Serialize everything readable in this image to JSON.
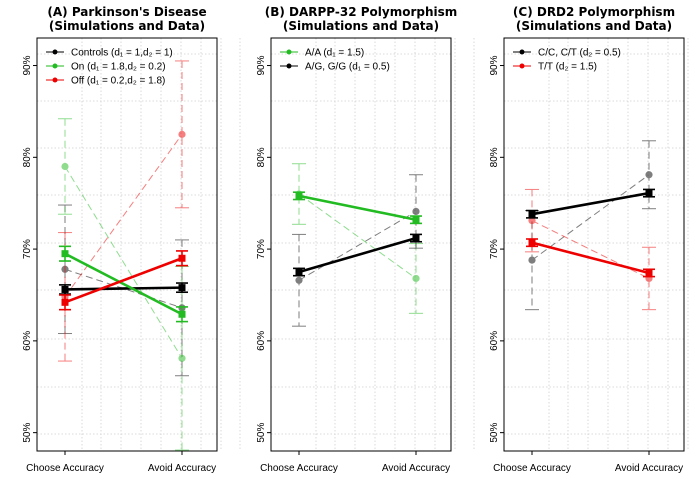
{
  "chart_data": [
    {
      "type": "line",
      "title": "(A) Parkinson's Disease",
      "subtitle": "(Simulations and Data)",
      "categories": [
        "Choose Accuracy",
        "Avoid Accuracy"
      ],
      "ylim": [
        48,
        93
      ],
      "yticks": [
        "50%",
        "60%",
        "70%",
        "80%",
        "90%"
      ],
      "legend_position": "top-left",
      "grid": true,
      "legend": [
        {
          "label": "Controls (d₁ = 1,d₂ = 1)",
          "color": "#000000"
        },
        {
          "label": "On (d₁ = 1.8,d₂ = 0.2)",
          "color": "#22bb22"
        },
        {
          "label": "Off (d₁ = 0.2,d₂ = 1.8)",
          "color": "#ee0000"
        }
      ],
      "series": [
        {
          "kind": "data",
          "color": "#000000",
          "values": [
            67.8,
            63.6
          ],
          "err": [
            7.0,
            7.4
          ]
        },
        {
          "kind": "data",
          "color": "#22bb22",
          "values": [
            79.0,
            58.1
          ],
          "err": [
            5.2,
            10.0
          ]
        },
        {
          "kind": "data",
          "color": "#ee0000",
          "values": [
            64.8,
            82.5
          ],
          "err": [
            7.0,
            8.0
          ]
        },
        {
          "kind": "sim",
          "color": "#000000",
          "values": [
            65.6,
            65.8
          ],
          "err": [
            0.5,
            0.5
          ]
        },
        {
          "kind": "sim",
          "color": "#22bb22",
          "values": [
            69.5,
            62.9
          ],
          "err": [
            0.8,
            0.8
          ]
        },
        {
          "kind": "sim",
          "color": "#ee0000",
          "values": [
            64.2,
            69.0
          ],
          "err": [
            0.8,
            0.8
          ]
        }
      ]
    },
    {
      "type": "line",
      "title": "(B) DARPP-32 Polymorphism",
      "subtitle": "(Simulations and Data)",
      "categories": [
        "Choose Accuracy",
        "Avoid Accuracy"
      ],
      "ylim": [
        48,
        93
      ],
      "yticks": [
        "50%",
        "60%",
        "70%",
        "80%",
        "90%"
      ],
      "legend_position": "top-left",
      "grid": true,
      "legend": [
        {
          "label": "A/A (d₁ = 1.5)",
          "color": "#22bb22"
        },
        {
          "label": "A/G, G/G (d₁ = 0.5)",
          "color": "#000000"
        }
      ],
      "series": [
        {
          "kind": "data",
          "color": "#22bb22",
          "values": [
            76.0,
            66.8
          ],
          "err": [
            3.3,
            3.8
          ]
        },
        {
          "kind": "data",
          "color": "#000000",
          "values": [
            66.6,
            74.1
          ],
          "err": [
            5.0,
            4.0
          ]
        },
        {
          "kind": "sim",
          "color": "#22bb22",
          "values": [
            75.8,
            73.2
          ],
          "err": [
            0.4,
            0.4
          ]
        },
        {
          "kind": "sim",
          "color": "#000000",
          "values": [
            67.5,
            71.2
          ],
          "err": [
            0.4,
            0.4
          ]
        }
      ]
    },
    {
      "type": "line",
      "title": "(C) DRD2 Polymorphism",
      "subtitle": "(Simulations and Data)",
      "categories": [
        "Choose Accuracy",
        "Avoid Accuracy"
      ],
      "ylim": [
        48,
        93
      ],
      "yticks": [
        "50%",
        "60%",
        "70%",
        "80%",
        "90%"
      ],
      "legend_position": "top-left",
      "grid": true,
      "legend": [
        {
          "label": "C/C, C/T (d₂ = 0.5)",
          "color": "#000000"
        },
        {
          "label": "T/T (d₂ = 1.5)",
          "color": "#ee0000"
        }
      ],
      "series": [
        {
          "kind": "data",
          "color": "#000000",
          "values": [
            68.8,
            78.1
          ],
          "err": [
            5.4,
            3.7
          ]
        },
        {
          "kind": "data",
          "color": "#ee0000",
          "values": [
            73.1,
            66.8
          ],
          "err": [
            3.4,
            3.4
          ]
        },
        {
          "kind": "sim",
          "color": "#000000",
          "values": [
            73.8,
            76.1
          ],
          "err": [
            0.4,
            0.4
          ]
        },
        {
          "kind": "sim",
          "color": "#ee0000",
          "values": [
            70.7,
            67.4
          ],
          "err": [
            0.4,
            0.4
          ]
        }
      ]
    }
  ]
}
